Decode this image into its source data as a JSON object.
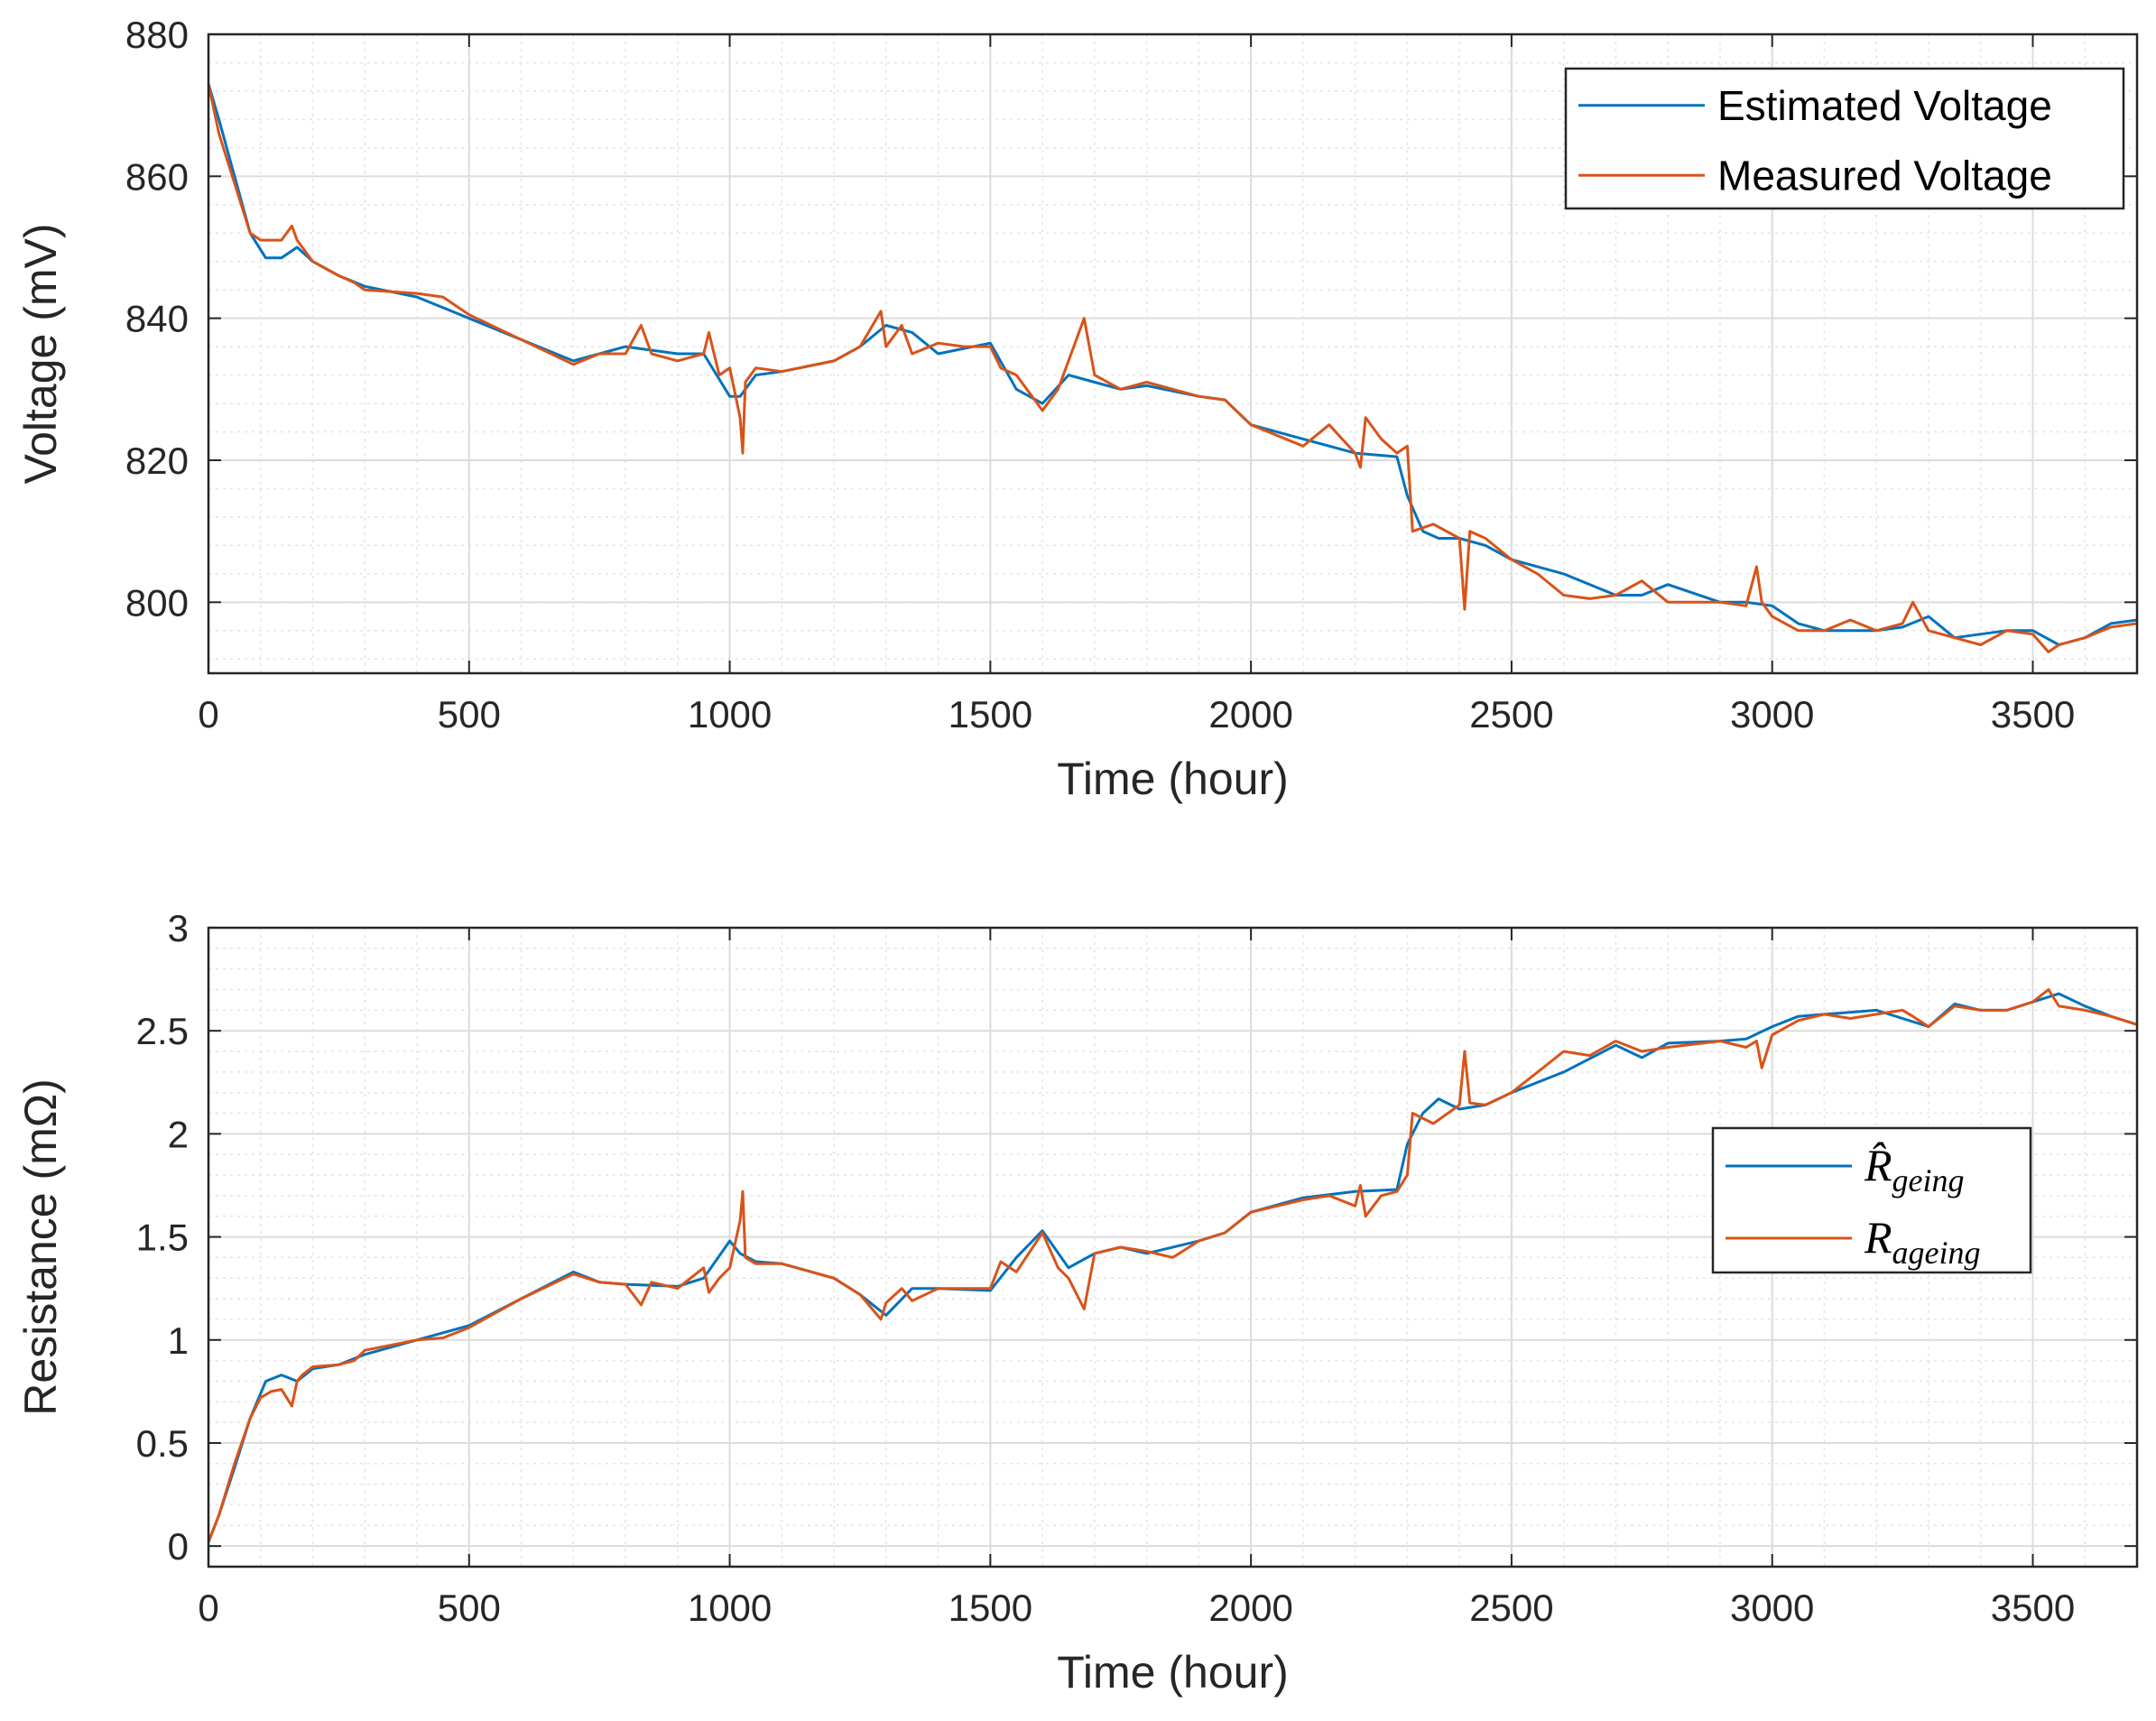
{
  "colors": {
    "estimated": "#0072BD",
    "measured": "#D95319",
    "grid": "#dcdcdc",
    "axes": "#262626"
  },
  "chart_data": [
    {
      "type": "line",
      "xlabel": "Time (hour)",
      "ylabel": "Voltage (mV)",
      "xlim": [
        0,
        3700
      ],
      "ylim": [
        790,
        880
      ],
      "xticks": [
        "0",
        "500",
        "1000",
        "1500",
        "2000",
        "2500",
        "3000",
        "3500"
      ],
      "yticks": [
        "800",
        "820",
        "840",
        "860",
        "880"
      ],
      "grid": true,
      "minor_grid": true,
      "legend_position": "top-right",
      "series": [
        {
          "name": "Estimated Voltage",
          "color": "#0072BD",
          "x": [
            0,
            20,
            50,
            80,
            110,
            140,
            170,
            200,
            250,
            300,
            400,
            500,
            600,
            700,
            750,
            800,
            900,
            950,
            1000,
            1020,
            1050,
            1100,
            1200,
            1250,
            1300,
            1350,
            1400,
            1500,
            1550,
            1600,
            1650,
            1700,
            1750,
            1800,
            1900,
            1950,
            2000,
            2100,
            2200,
            2280,
            2300,
            2330,
            2360,
            2400,
            2450,
            2500,
            2600,
            2700,
            2750,
            2800,
            2900,
            2950,
            3000,
            3050,
            3100,
            3200,
            3250,
            3300,
            3350,
            3400,
            3450,
            3500,
            3550,
            3600,
            3650,
            3700
          ],
          "y": [
            873,
            868,
            860,
            852,
            848.5,
            848.5,
            850,
            848,
            846,
            844.5,
            843,
            840,
            837,
            834,
            835,
            836,
            835,
            835,
            829,
            829,
            832,
            832.5,
            834,
            836,
            839,
            838,
            835,
            836.5,
            830,
            828,
            832,
            831,
            830,
            830.5,
            829,
            828.5,
            825,
            823,
            821,
            820.5,
            815,
            810,
            809,
            809,
            808,
            806,
            804,
            801,
            801,
            802.5,
            800,
            800,
            799.5,
            797,
            796,
            796,
            796.5,
            798,
            795,
            795.5,
            796,
            796,
            794,
            795,
            797,
            797.5
          ]
        },
        {
          "name": "Measured Voltage",
          "color": "#D95319",
          "x": [
            0,
            20,
            50,
            80,
            100,
            120,
            140,
            160,
            170,
            180,
            200,
            250,
            280,
            300,
            400,
            450,
            500,
            600,
            700,
            750,
            800,
            830,
            850,
            900,
            950,
            960,
            980,
            1000,
            1020,
            1025,
            1030,
            1050,
            1100,
            1200,
            1250,
            1290,
            1300,
            1330,
            1350,
            1400,
            1450,
            1500,
            1520,
            1550,
            1600,
            1630,
            1650,
            1680,
            1700,
            1750,
            1800,
            1850,
            1900,
            1950,
            2000,
            2100,
            2150,
            2200,
            2210,
            2220,
            2250,
            2280,
            2300,
            2310,
            2350,
            2400,
            2410,
            2420,
            2450,
            2500,
            2550,
            2600,
            2650,
            2700,
            2750,
            2800,
            2900,
            2950,
            2970,
            2980,
            3000,
            3050,
            3100,
            3150,
            3200,
            3250,
            3270,
            3300,
            3350,
            3400,
            3450,
            3500,
            3530,
            3550,
            3600,
            3650,
            3700
          ],
          "y": [
            873,
            866,
            859,
            852,
            851,
            851,
            851,
            853,
            851,
            850,
            848,
            846,
            845,
            844,
            843.5,
            843,
            840.5,
            837,
            833.5,
            835,
            835,
            839,
            835,
            834,
            835,
            838,
            832,
            833,
            826,
            821,
            831,
            833,
            832.5,
            834,
            836,
            841,
            836,
            839,
            835,
            836.5,
            836,
            836,
            833,
            832,
            827,
            830,
            834,
            840,
            832,
            830,
            831,
            830,
            829,
            828.5,
            825,
            822,
            825,
            821,
            819,
            826,
            823,
            821,
            822,
            810,
            811,
            809,
            799,
            810,
            809,
            806,
            804,
            801,
            800.5,
            801,
            803,
            800,
            800,
            799.5,
            805,
            800,
            798,
            796,
            796,
            797.5,
            796,
            797,
            800,
            796,
            795,
            794,
            796,
            795.5,
            793,
            794,
            795,
            796.5,
            797
          ]
        }
      ]
    },
    {
      "type": "line",
      "xlabel": "Time (hour)",
      "ylabel": "Resistance (mΩ)",
      "xlim": [
        0,
        3700
      ],
      "ylim": [
        -0.1,
        3
      ],
      "xticks": [
        "0",
        "500",
        "1000",
        "1500",
        "2000",
        "2500",
        "3000",
        "3500"
      ],
      "yticks": [
        "0",
        "0.5",
        "1",
        "1.5",
        "2",
        "2.5",
        "3"
      ],
      "grid": true,
      "minor_grid": true,
      "legend_position": "right",
      "series": [
        {
          "name": "R̂ageing",
          "color": "#0072BD",
          "x": [
            0,
            20,
            50,
            80,
            110,
            140,
            170,
            200,
            250,
            300,
            400,
            500,
            600,
            700,
            750,
            800,
            900,
            950,
            1000,
            1020,
            1050,
            1100,
            1200,
            1250,
            1300,
            1350,
            1400,
            1500,
            1550,
            1600,
            1650,
            1700,
            1750,
            1800,
            1900,
            1950,
            2000,
            2100,
            2200,
            2280,
            2300,
            2330,
            2360,
            2400,
            2450,
            2500,
            2600,
            2700,
            2750,
            2800,
            2900,
            2950,
            3000,
            3050,
            3100,
            3200,
            3250,
            3300,
            3350,
            3400,
            3450,
            3500,
            3550,
            3600,
            3650,
            3700
          ],
          "y": [
            0.02,
            0.15,
            0.38,
            0.62,
            0.8,
            0.83,
            0.8,
            0.86,
            0.88,
            0.93,
            1.0,
            1.07,
            1.2,
            1.33,
            1.28,
            1.27,
            1.26,
            1.3,
            1.48,
            1.42,
            1.38,
            1.37,
            1.3,
            1.22,
            1.12,
            1.25,
            1.25,
            1.24,
            1.4,
            1.53,
            1.35,
            1.42,
            1.45,
            1.42,
            1.48,
            1.52,
            1.62,
            1.69,
            1.72,
            1.73,
            1.95,
            2.1,
            2.17,
            2.12,
            2.14,
            2.2,
            2.3,
            2.43,
            2.37,
            2.44,
            2.45,
            2.46,
            2.52,
            2.57,
            2.58,
            2.6,
            2.56,
            2.52,
            2.63,
            2.6,
            2.6,
            2.64,
            2.68,
            2.62,
            2.57,
            2.53
          ]
        },
        {
          "name": "Rageing",
          "color": "#D95319",
          "x": [
            0,
            20,
            50,
            80,
            100,
            120,
            140,
            150,
            160,
            170,
            180,
            200,
            250,
            280,
            300,
            400,
            450,
            500,
            600,
            700,
            750,
            800,
            830,
            850,
            900,
            950,
            960,
            980,
            1000,
            1020,
            1025,
            1030,
            1050,
            1100,
            1200,
            1250,
            1290,
            1300,
            1330,
            1350,
            1400,
            1450,
            1500,
            1520,
            1550,
            1600,
            1630,
            1650,
            1680,
            1700,
            1750,
            1800,
            1850,
            1900,
            1950,
            2000,
            2100,
            2150,
            2200,
            2210,
            2220,
            2250,
            2280,
            2300,
            2310,
            2350,
            2400,
            2410,
            2420,
            2450,
            2500,
            2550,
            2600,
            2650,
            2700,
            2750,
            2800,
            2900,
            2950,
            2970,
            2980,
            3000,
            3050,
            3100,
            3150,
            3200,
            3250,
            3270,
            3300,
            3350,
            3400,
            3450,
            3500,
            3530,
            3550,
            3600,
            3650,
            3700
          ],
          "y": [
            0.02,
            0.15,
            0.4,
            0.62,
            0.72,
            0.75,
            0.76,
            0.72,
            0.68,
            0.8,
            0.83,
            0.87,
            0.88,
            0.9,
            0.95,
            1.0,
            1.01,
            1.06,
            1.2,
            1.32,
            1.28,
            1.27,
            1.17,
            1.28,
            1.25,
            1.35,
            1.23,
            1.3,
            1.35,
            1.58,
            1.72,
            1.4,
            1.37,
            1.37,
            1.3,
            1.22,
            1.1,
            1.18,
            1.25,
            1.19,
            1.25,
            1.25,
            1.25,
            1.38,
            1.33,
            1.52,
            1.35,
            1.3,
            1.15,
            1.42,
            1.45,
            1.43,
            1.4,
            1.48,
            1.52,
            1.62,
            1.68,
            1.7,
            1.65,
            1.75,
            1.6,
            1.7,
            1.72,
            1.8,
            2.1,
            2.05,
            2.14,
            2.4,
            2.15,
            2.14,
            2.2,
            2.3,
            2.4,
            2.38,
            2.45,
            2.4,
            2.42,
            2.45,
            2.42,
            2.45,
            2.32,
            2.48,
            2.55,
            2.58,
            2.56,
            2.58,
            2.6,
            2.57,
            2.52,
            2.62,
            2.6,
            2.6,
            2.64,
            2.7,
            2.62,
            2.6,
            2.57,
            2.53
          ]
        }
      ]
    }
  ]
}
